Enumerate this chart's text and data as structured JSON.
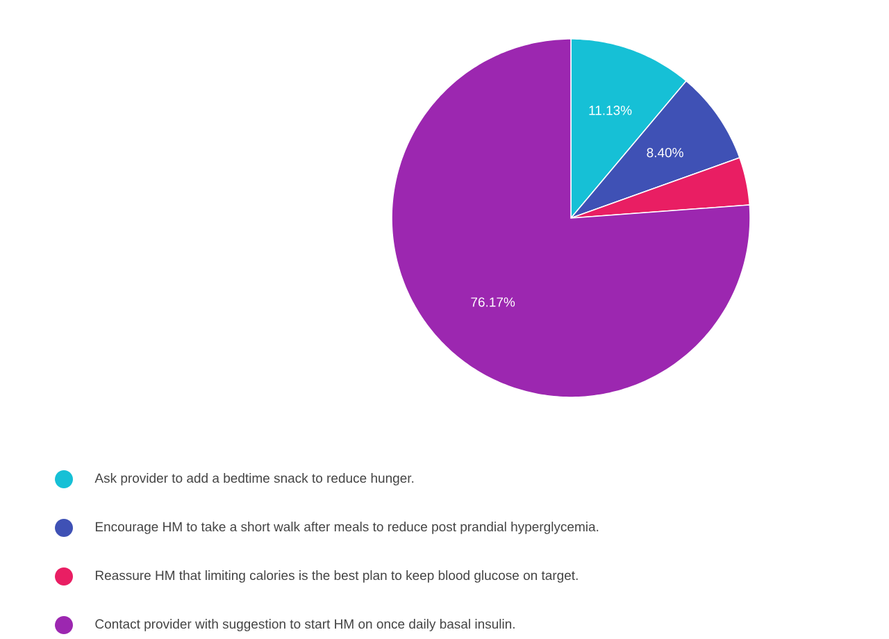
{
  "chart_data": {
    "type": "pie",
    "categories": [
      "Ask provider to add a bedtime snack to reduce hunger.",
      "Encourage HM to take a short walk after meals to reduce post prandial hyperglycemia.",
      "Reassure HM that limiting calories is the best plan to keep blood glucose on target.",
      "Contact provider with suggestion to start HM on once daily basal insulin."
    ],
    "values": [
      11.13,
      8.4,
      4.3,
      76.17
    ],
    "colors": [
      "#16c0d6",
      "#3f51b5",
      "#e91e63",
      "#9c27b0"
    ],
    "value_labels": [
      "11.13%",
      "8.40%",
      null,
      "76.17%"
    ],
    "legend": "bottom"
  }
}
